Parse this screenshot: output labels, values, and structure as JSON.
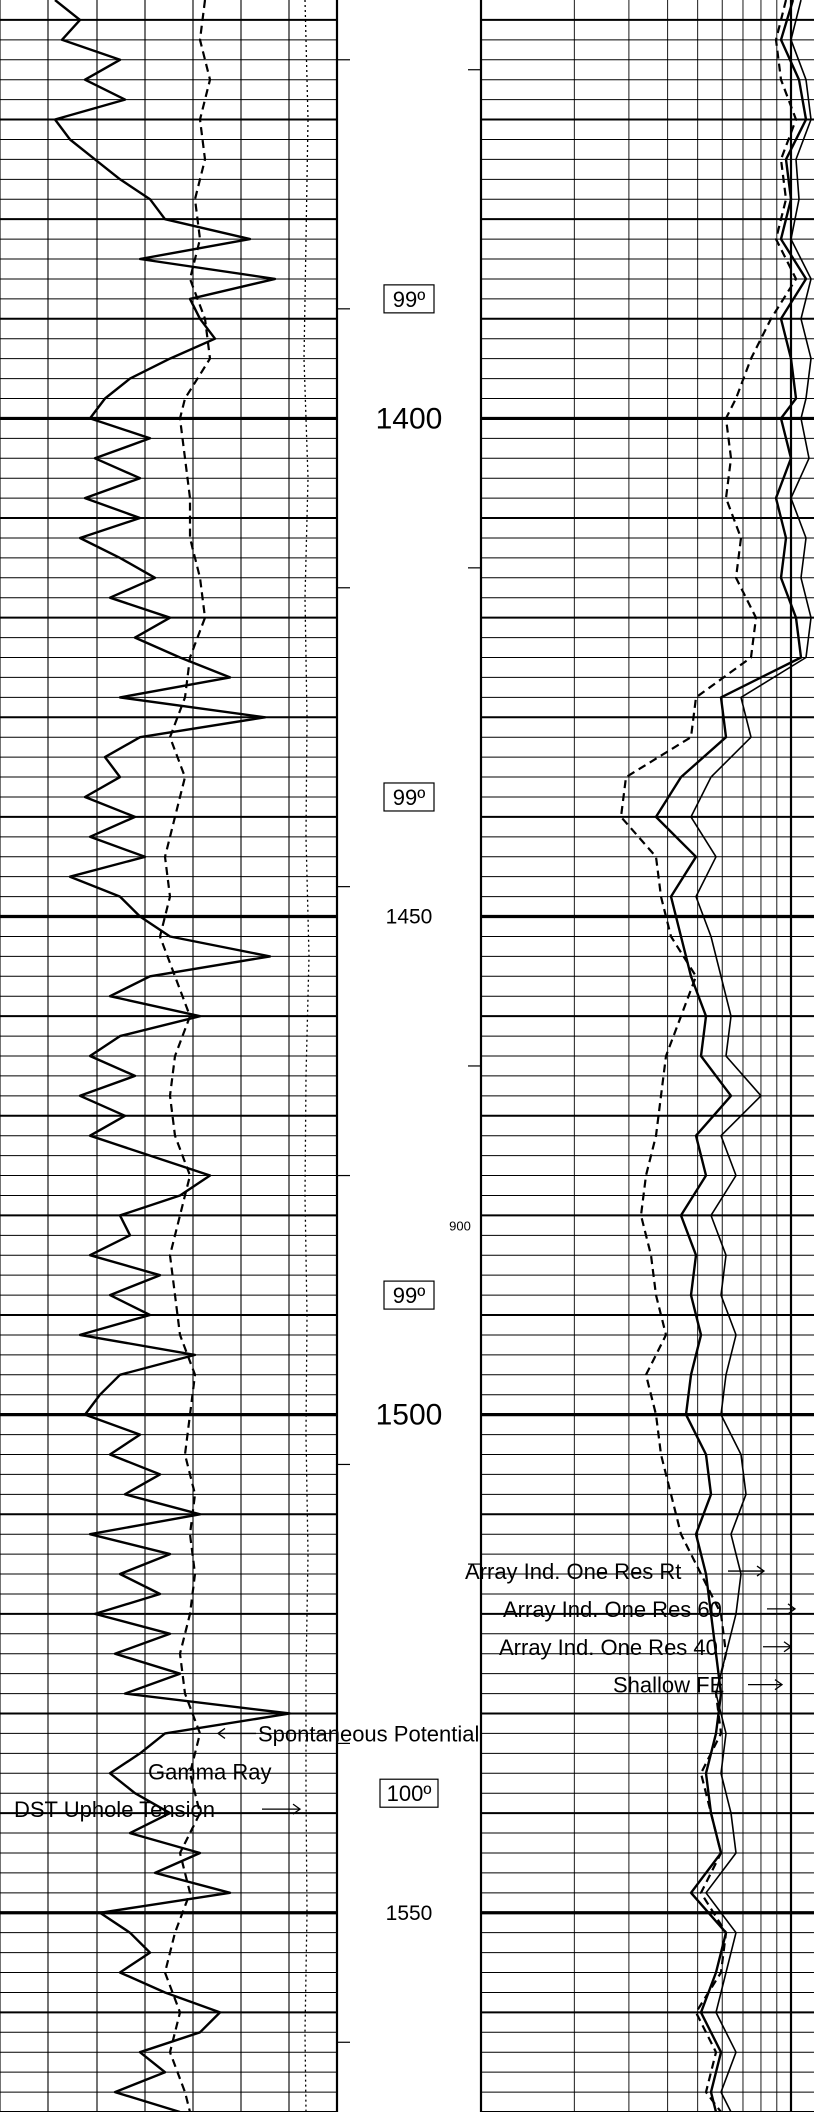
{
  "chart_data": {
    "type": "line",
    "depth_labels": [
      {
        "depth": 1400,
        "text": "1400",
        "major": true
      },
      {
        "depth": 1450,
        "text": "1450",
        "major": false
      },
      {
        "depth": 1500,
        "text": "1500",
        "major": true
      },
      {
        "depth": 1550,
        "text": "1550",
        "major": false
      }
    ],
    "temperature_labels": [
      {
        "depth": 1388,
        "text": "99º"
      },
      {
        "depth": 1438,
        "text": "99º"
      },
      {
        "depth": 1488,
        "text": "99º"
      },
      {
        "depth": 1538,
        "text": "100º"
      }
    ],
    "track2_scale_tick": {
      "depth": 1481,
      "text": "900"
    },
    "track1_annotations": [
      {
        "text": "Spontaneous Potential",
        "depth": 1532
      },
      {
        "text": "Gamma Ray",
        "depth": 1535.8
      },
      {
        "text": "DST Uphole Tension",
        "depth": 1539.6
      }
    ],
    "track2_annotations": [
      {
        "text": "Array Ind. One Res Rt",
        "depth": 1515.7
      },
      {
        "text": "Array Ind. One Res 60",
        "depth": 1519.5
      },
      {
        "text": "Array Ind. One Res 40",
        "depth": 1523.3
      },
      {
        "text": "Shallow FE",
        "depth": 1527.1
      }
    ],
    "series": [
      {
        "track": 1,
        "style": "solid",
        "depth": [
          1358,
          1360,
          1362,
          1364,
          1366,
          1368,
          1370,
          1372,
          1374,
          1376,
          1378,
          1380,
          1382,
          1384,
          1386,
          1388,
          1390,
          1392,
          1394,
          1396,
          1398,
          1400,
          1402,
          1404,
          1406,
          1408,
          1410,
          1412,
          1414,
          1416,
          1418,
          1420,
          1422,
          1424,
          1426,
          1428,
          1430,
          1432,
          1434,
          1436,
          1438,
          1440,
          1442,
          1444,
          1446,
          1448,
          1450,
          1452,
          1454,
          1456,
          1458,
          1460,
          1462,
          1464,
          1466,
          1468,
          1470,
          1472,
          1474,
          1476,
          1478,
          1480,
          1482,
          1484,
          1486,
          1488,
          1490,
          1492,
          1494,
          1496,
          1498,
          1500,
          1502,
          1504,
          1506,
          1508,
          1510,
          1512,
          1514,
          1516,
          1518,
          1520,
          1522,
          1524,
          1526,
          1528,
          1530,
          1532,
          1534,
          1536,
          1538,
          1540,
          1542,
          1544,
          1546,
          1548,
          1550,
          1552,
          1554,
          1556,
          1558,
          1560,
          1562,
          1564,
          1566,
          1568,
          1570
        ],
        "values": [
          55,
          80,
          62,
          120,
          85,
          125,
          55,
          70,
          95,
          120,
          150,
          165,
          250,
          140,
          275,
          190,
          200,
          215,
          170,
          130,
          105,
          90,
          150,
          95,
          140,
          85,
          140,
          80,
          120,
          155,
          110,
          170,
          135,
          180,
          230,
          120,
          265,
          140,
          105,
          120,
          85,
          135,
          90,
          145,
          70,
          120,
          140,
          170,
          270,
          150,
          110,
          200,
          120,
          90,
          135,
          80,
          125,
          90,
          150,
          210,
          180,
          120,
          130,
          90,
          160,
          110,
          150,
          80,
          195,
          120,
          100,
          85,
          140,
          110,
          160,
          125,
          200,
          90,
          170,
          120,
          160,
          95,
          170,
          115,
          180,
          125,
          290,
          165,
          140,
          110,
          135,
          170,
          130,
          200,
          155,
          230,
          100,
          130,
          150,
          120,
          165,
          220,
          200,
          140,
          165,
          115,
          180
        ]
      },
      {
        "track": 1,
        "style": "dashed",
        "depth": [
          1358,
          1362,
          1366,
          1370,
          1374,
          1378,
          1382,
          1386,
          1390,
          1394,
          1398,
          1400,
          1404,
          1408,
          1412,
          1416,
          1420,
          1424,
          1428,
          1432,
          1436,
          1440,
          1444,
          1448,
          1452,
          1456,
          1460,
          1464,
          1468,
          1472,
          1476,
          1480,
          1484,
          1488,
          1492,
          1496,
          1500,
          1504,
          1508,
          1512,
          1516,
          1520,
          1524,
          1528,
          1532,
          1536,
          1540,
          1544,
          1548,
          1552,
          1556,
          1560,
          1564,
          1568,
          1570
        ],
        "values": [
          205,
          200,
          210,
          200,
          205,
          195,
          200,
          190,
          205,
          210,
          185,
          180,
          185,
          190,
          190,
          200,
          205,
          190,
          185,
          170,
          185,
          175,
          165,
          170,
          160,
          175,
          190,
          175,
          170,
          175,
          190,
          180,
          170,
          175,
          180,
          195,
          190,
          185,
          195,
          190,
          195,
          190,
          180,
          185,
          200,
          190,
          200,
          180,
          190,
          175,
          165,
          180,
          170,
          185,
          190
        ]
      },
      {
        "track": 1,
        "style": "dotted",
        "depth": [
          1358,
          1370,
          1382,
          1394,
          1406,
          1418,
          1430,
          1442,
          1454,
          1466,
          1478,
          1490,
          1502,
          1514,
          1526,
          1538,
          1550,
          1562,
          1570
        ],
        "values": [
          305,
          308,
          306,
          304,
          308,
          305,
          307,
          306,
          309,
          306,
          305,
          307,
          306,
          308,
          306,
          306,
          307,
          305,
          306
        ]
      },
      {
        "track": 2,
        "style": "solid",
        "depth": [
          1358,
          1362,
          1366,
          1370,
          1374,
          1378,
          1382,
          1386,
          1390,
          1394,
          1398,
          1400,
          1404,
          1408,
          1412,
          1416,
          1420,
          1424,
          1428,
          1432,
          1436,
          1440,
          1444,
          1448,
          1452,
          1456,
          1460,
          1464,
          1468,
          1472,
          1476,
          1480,
          1484,
          1488,
          1492,
          1496,
          1500,
          1504,
          1508,
          1512,
          1516,
          1520,
          1524,
          1528,
          1532,
          1536,
          1540,
          1544,
          1548,
          1552,
          1556,
          1560,
          1564,
          1568,
          1570
        ],
        "values": [
          312,
          300,
          318,
          325,
          305,
          310,
          300,
          325,
          300,
          310,
          315,
          300,
          310,
          295,
          305,
          300,
          315,
          320,
          240,
          245,
          200,
          175,
          215,
          190,
          200,
          210,
          225,
          220,
          250,
          215,
          225,
          200,
          215,
          210,
          220,
          210,
          205,
          225,
          230,
          215,
          225,
          230,
          235,
          240,
          235,
          225,
          230,
          240,
          210,
          245,
          235,
          220,
          240,
          230,
          235
        ]
      },
      {
        "track": 2,
        "style": "solid-thin",
        "depth": [
          1358,
          1362,
          1366,
          1370,
          1374,
          1378,
          1382,
          1386,
          1390,
          1394,
          1398,
          1400,
          1404,
          1408,
          1412,
          1416,
          1420,
          1424,
          1428,
          1432,
          1436,
          1440,
          1444,
          1448,
          1452,
          1456,
          1460,
          1464,
          1468,
          1472,
          1476,
          1480,
          1484,
          1488,
          1492,
          1496,
          1500,
          1504,
          1508,
          1512,
          1516,
          1520,
          1524,
          1528,
          1532,
          1536,
          1540,
          1544,
          1548,
          1552,
          1556,
          1560,
          1564,
          1568,
          1570
        ],
        "values": [
          320,
          310,
          325,
          330,
          315,
          318,
          310,
          330,
          320,
          330,
          325,
          320,
          328,
          310,
          325,
          320,
          330,
          325,
          260,
          270,
          230,
          210,
          235,
          215,
          230,
          240,
          250,
          245,
          280,
          240,
          255,
          230,
          245,
          240,
          255,
          245,
          240,
          260,
          265,
          250,
          260,
          255,
          245,
          235,
          245,
          240,
          250,
          255,
          225,
          255,
          245,
          235,
          255,
          240,
          250
        ]
      },
      {
        "track": 2,
        "style": "dashed",
        "depth": [
          1358,
          1362,
          1366,
          1370,
          1374,
          1378,
          1382,
          1386,
          1390,
          1394,
          1398,
          1400,
          1404,
          1408,
          1412,
          1416,
          1420,
          1424,
          1428,
          1432,
          1436,
          1440,
          1444,
          1448,
          1452,
          1456,
          1460,
          1464,
          1468,
          1472,
          1476,
          1480,
          1484,
          1488,
          1492,
          1496,
          1500,
          1504,
          1508,
          1512,
          1516,
          1520,
          1524,
          1528,
          1532,
          1536,
          1540,
          1544,
          1548,
          1552,
          1556,
          1560,
          1564,
          1568,
          1570
        ],
        "values": [
          305,
          295,
          300,
          315,
          300,
          305,
          295,
          315,
          290,
          270,
          255,
          245,
          250,
          245,
          260,
          255,
          275,
          270,
          215,
          210,
          145,
          140,
          175,
          180,
          190,
          215,
          200,
          185,
          180,
          175,
          165,
          160,
          170,
          175,
          185,
          165,
          175,
          180,
          190,
          200,
          220,
          240,
          245,
          235,
          240,
          220,
          230,
          240,
          220,
          245,
          240,
          215,
          235,
          225,
          240
        ]
      }
    ]
  }
}
